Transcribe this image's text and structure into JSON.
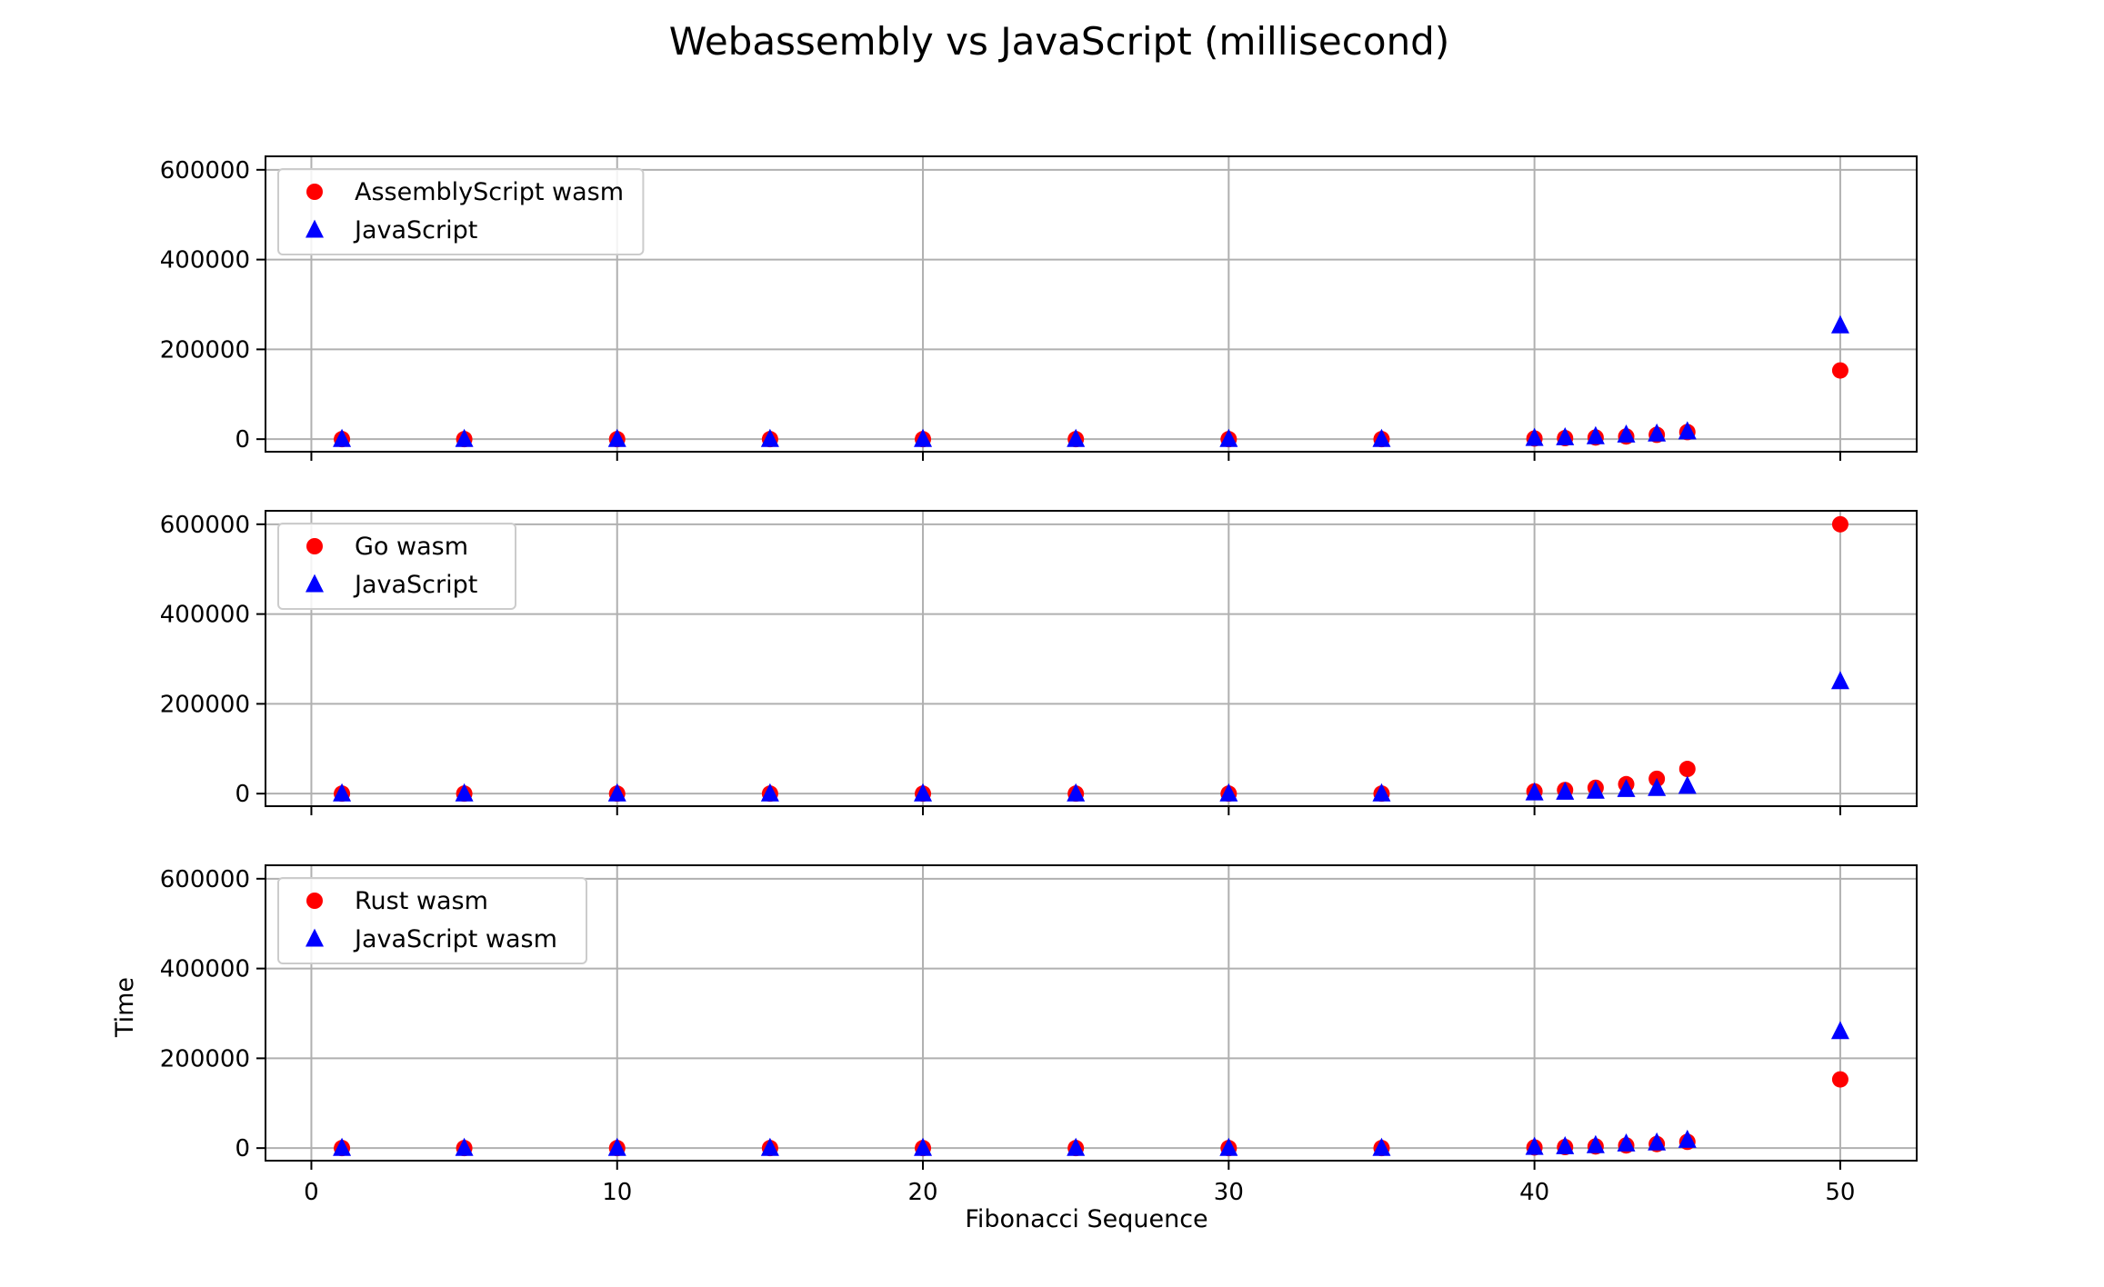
{
  "chart_data": {
    "title": "Webassembly vs JavaScript (millisecond)",
    "xlabel": "Fibonacci Sequence",
    "ylabel": "Time",
    "xlim": [
      -1.5,
      52.5
    ],
    "ylim": [
      -28000,
      630000
    ],
    "x_ticks": [
      0,
      10,
      20,
      30,
      40,
      50
    ],
    "y_ticks": [
      0,
      200000,
      400000,
      600000
    ],
    "grid": true,
    "legend_position": "upper-left",
    "colors": {
      "red": "#ff0000",
      "blue": "#0000ff",
      "grid": "#b0b0b0"
    },
    "panels": [
      {
        "type": "scatter",
        "x": [
          1,
          5,
          10,
          15,
          20,
          25,
          30,
          35,
          40,
          41,
          42,
          43,
          44,
          45,
          50
        ],
        "series": [
          {
            "name": "AssemblyScript wasm",
            "marker": "circle",
            "color": "#ff0000",
            "values": [
              0,
              0,
              0,
              0,
              0,
              0,
              0,
              0,
              1400,
              2300,
              3700,
              6000,
              9700,
              15700,
              153000
            ]
          },
          {
            "name": "JavaScript",
            "marker": "triangle",
            "color": "#0000ff",
            "values": [
              0,
              0,
              0,
              0,
              0,
              0,
              0,
              0,
              2300,
              3700,
              6000,
              9700,
              12000,
              17000,
              253000
            ]
          }
        ]
      },
      {
        "type": "scatter",
        "x": [
          1,
          5,
          10,
          15,
          20,
          25,
          30,
          35,
          40,
          41,
          42,
          43,
          44,
          45,
          50
        ],
        "series": [
          {
            "name": "Go wasm",
            "marker": "circle",
            "color": "#ff0000",
            "values": [
              0,
              0,
              0,
              0,
              0,
              0,
              0,
              0,
              5000,
              8000,
              13000,
              21000,
              33000,
              55000,
              600000
            ]
          },
          {
            "name": "JavaScript",
            "marker": "triangle",
            "color": "#0000ff",
            "values": [
              0,
              0,
              0,
              0,
              0,
              0,
              0,
              0,
              2300,
              3700,
              6000,
              9700,
              12000,
              17000,
              250000
            ]
          }
        ]
      },
      {
        "type": "scatter",
        "x": [
          1,
          5,
          10,
          15,
          20,
          25,
          30,
          35,
          40,
          41,
          42,
          43,
          44,
          45,
          50
        ],
        "series": [
          {
            "name": "Rust wasm",
            "marker": "circle",
            "color": "#ff0000",
            "values": [
              0,
              0,
              0,
              0,
              0,
              0,
              0,
              0,
              1400,
              2300,
              3700,
              6000,
              9000,
              14000,
              153000
            ]
          },
          {
            "name": "JavaScript wasm",
            "marker": "triangle",
            "color": "#0000ff",
            "values": [
              0,
              0,
              0,
              0,
              0,
              0,
              0,
              0,
              2300,
              3700,
              6000,
              9700,
              12000,
              18000,
              260000
            ]
          }
        ]
      }
    ]
  }
}
